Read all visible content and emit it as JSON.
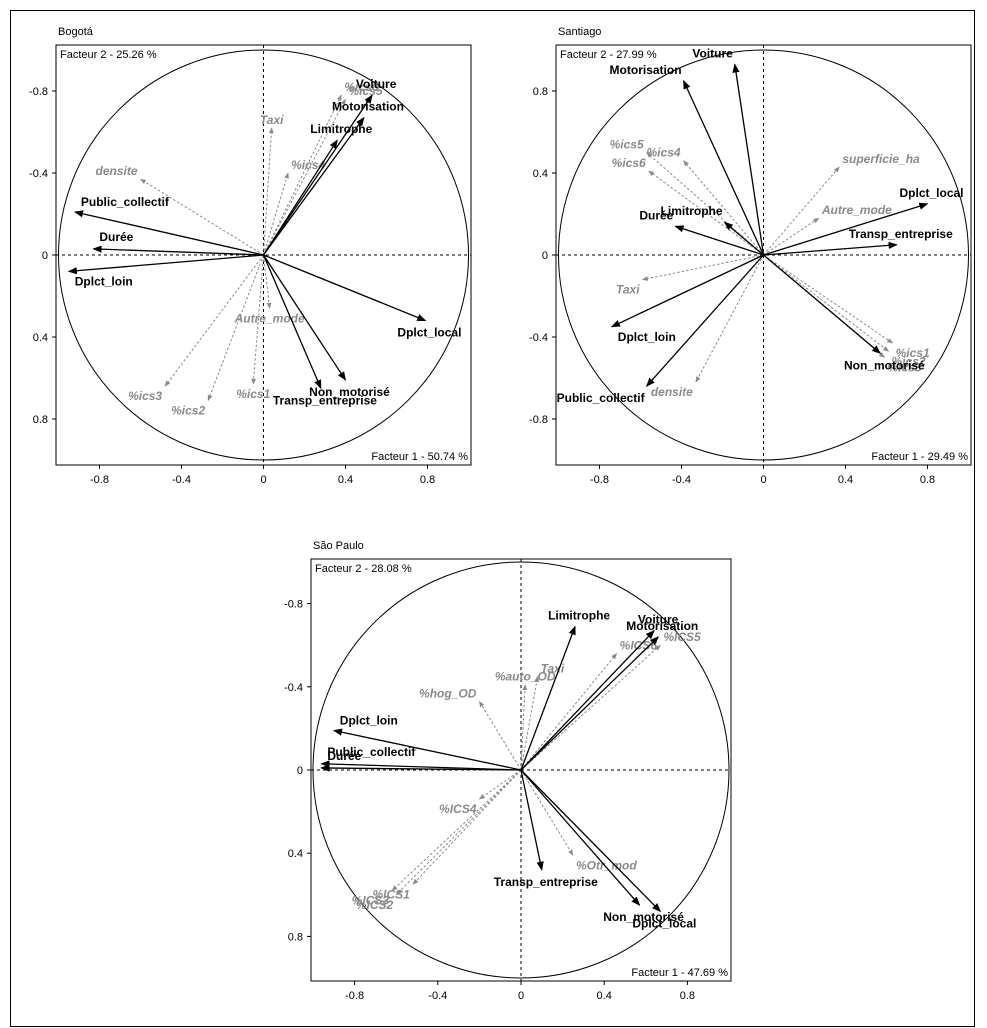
{
  "chart_data": [
    {
      "type": "scatter",
      "title": "Bogotá",
      "xlabel": "Facteur 1 - 50.74 %",
      "ylabel": "Facteur 2 - 25.26 %",
      "xlim": [
        -1.0,
        1.0
      ],
      "ylim": [
        -1.0,
        1.0
      ],
      "x_ticks": [
        "-0.8",
        "-0.4",
        "0",
        "0.4",
        "0.8"
      ],
      "y_ticks": [
        "-0.8",
        "-0.4",
        "0",
        "0.4",
        "0.8"
      ],
      "active_variables": [
        {
          "label": "Voiture",
          "x": 0.53,
          "y": 0.78
        },
        {
          "label": "Motorisation",
          "x": 0.49,
          "y": 0.67
        },
        {
          "label": "Limitrophe",
          "x": 0.36,
          "y": 0.56
        },
        {
          "label": "Public_collectif",
          "x": -0.92,
          "y": 0.21
        },
        {
          "label": "Durée",
          "x": -0.83,
          "y": 0.03
        },
        {
          "label": "Dplct_loin",
          "x": -0.95,
          "y": -0.08
        },
        {
          "label": "Dplct_local",
          "x": 0.79,
          "y": -0.32
        },
        {
          "label": "Non_motorisé",
          "x": 0.4,
          "y": -0.61
        },
        {
          "label": "Transp_entreprise",
          "x": 0.28,
          "y": -0.65
        }
      ],
      "supplementary_variables": [
        {
          "label": "%ics6",
          "x": 0.38,
          "y": 0.78
        },
        {
          "label": "%ics5",
          "x": 0.4,
          "y": 0.76
        },
        {
          "label": "Taxi",
          "x": 0.04,
          "y": 0.62
        },
        {
          "label": "%ics4",
          "x": 0.12,
          "y": 0.4
        },
        {
          "label": "densite",
          "x": -0.6,
          "y": 0.37
        },
        {
          "label": "Autre_mode",
          "x": 0.03,
          "y": -0.26
        },
        {
          "label": "%ics3",
          "x": -0.48,
          "y": -0.64
        },
        {
          "label": "%ics2",
          "x": -0.27,
          "y": -0.71
        },
        {
          "label": "%ics1",
          "x": -0.05,
          "y": -0.63
        }
      ]
    },
    {
      "type": "scatter",
      "title": "Santiago",
      "xlabel": "Facteur 1 - 29.49 %",
      "ylabel": "Facteur 2 - 27.99 %",
      "xlim": [
        -1.0,
        1.0
      ],
      "ylim": [
        -1.0,
        1.0
      ],
      "x_ticks": [
        "-0.8",
        "-0.4",
        "0",
        "0.4",
        "0.8"
      ],
      "y_ticks": [
        "0.8",
        "0.4",
        "0",
        "-0.4",
        "-0.8"
      ],
      "active_variables": [
        {
          "label": "Voiture",
          "x": -0.14,
          "y": 0.93
        },
        {
          "label": "Motorisation",
          "x": -0.39,
          "y": 0.85
        },
        {
          "label": "Dplct_local",
          "x": 0.8,
          "y": 0.25
        },
        {
          "label": "Transp_entreprise",
          "x": 0.65,
          "y": 0.05
        },
        {
          "label": "Limitrophe",
          "x": -0.19,
          "y": 0.16
        },
        {
          "label": "Durée",
          "x": -0.43,
          "y": 0.14
        },
        {
          "label": "Dplct_loin",
          "x": -0.74,
          "y": -0.35
        },
        {
          "label": "Public_collectif",
          "x": -0.57,
          "y": -0.64
        },
        {
          "label": "Non_motorisé",
          "x": 0.57,
          "y": -0.48
        }
      ],
      "supplementary_variables": [
        {
          "label": "%ics5",
          "x": -0.57,
          "y": 0.5
        },
        {
          "label": "%ics4",
          "x": -0.39,
          "y": 0.46
        },
        {
          "label": "%ics6",
          "x": -0.56,
          "y": 0.41
        },
        {
          "label": "superficie_ha",
          "x": 0.37,
          "y": 0.43
        },
        {
          "label": "Autre_mode",
          "x": 0.27,
          "y": 0.18
        },
        {
          "label": "Taxi",
          "x": -0.59,
          "y": -0.12
        },
        {
          "label": "densite",
          "x": -0.33,
          "y": -0.62
        },
        {
          "label": "%ics1",
          "x": 0.63,
          "y": -0.43
        },
        {
          "label": "%ics2",
          "x": 0.61,
          "y": -0.47
        },
        {
          "label": "%ics3",
          "x": 0.59,
          "y": -0.5
        }
      ]
    },
    {
      "type": "scatter",
      "title": "São Paulo",
      "xlabel": "Facteur 1 - 47.69 %",
      "ylabel": "Facteur 2 - 28.08 %",
      "xlim": [
        -1.0,
        1.0
      ],
      "ylim": [
        -1.0,
        1.0
      ],
      "x_ticks": [
        "-0.8",
        "-0.4",
        "0",
        "0.4",
        "0.8"
      ],
      "y_ticks": [
        "-0.8",
        "-0.4",
        "0",
        "0.4",
        "0.8"
      ],
      "active_variables": [
        {
          "label": "Limitrophe",
          "x": 0.26,
          "y": 0.69
        },
        {
          "label": "Voiture",
          "x": 0.64,
          "y": 0.67
        },
        {
          "label": "Motorisation",
          "x": 0.66,
          "y": 0.64
        },
        {
          "label": "Dplct_loin",
          "x": -0.9,
          "y": 0.19
        },
        {
          "label": "Public_collectif",
          "x": -0.96,
          "y": 0.03
        },
        {
          "label": "Durée",
          "x": -0.96,
          "y": 0.01
        },
        {
          "label": "Transp_entreprise",
          "x": 0.1,
          "y": -0.48
        },
        {
          "label": "Non_motorisé",
          "x": 0.57,
          "y": -0.65
        },
        {
          "label": "Dplct_local",
          "x": 0.67,
          "y": -0.68
        }
      ],
      "supplementary_variables": [
        {
          "label": "Taxi",
          "x": 0.08,
          "y": 0.45
        },
        {
          "label": "%ICS5",
          "x": 0.67,
          "y": 0.6
        },
        {
          "label": "%ICS6",
          "x": 0.46,
          "y": 0.56
        },
        {
          "label": "%auto_OD",
          "x": 0.02,
          "y": 0.41
        },
        {
          "label": "%hog_OD",
          "x": -0.2,
          "y": 0.33
        },
        {
          "label": "%ICS4",
          "x": -0.2,
          "y": -0.14
        },
        {
          "label": "%Otr_mod",
          "x": 0.25,
          "y": -0.41
        },
        {
          "label": "%ICS3",
          "x": -0.62,
          "y": -0.58
        },
        {
          "label": "%ICS2",
          "x": -0.6,
          "y": -0.6
        },
        {
          "label": "%ICS1",
          "x": -0.52,
          "y": -0.55
        }
      ]
    }
  ]
}
